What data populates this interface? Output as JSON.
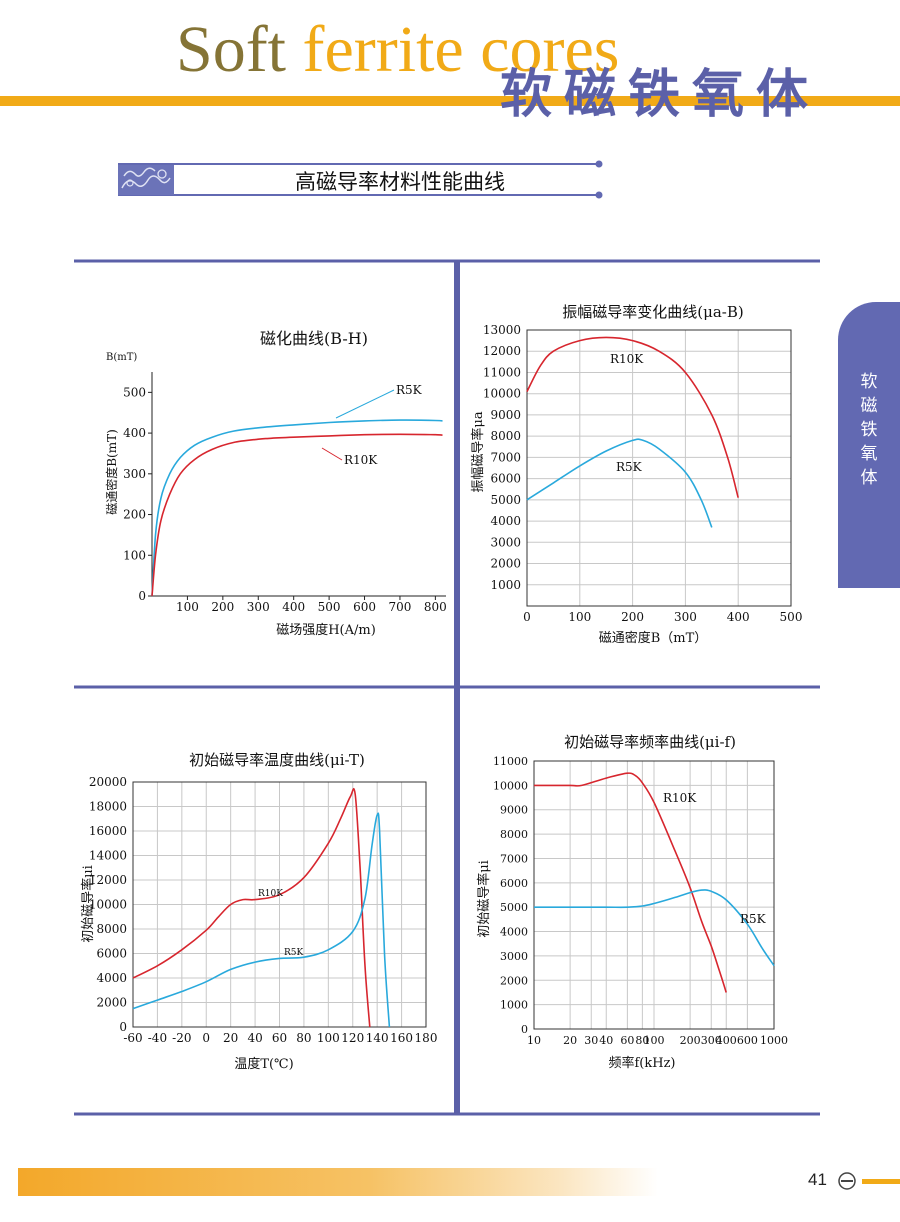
{
  "header": {
    "title_en_part1": "Soft",
    "title_en_part2": "ferrite cores",
    "title_cn": "软磁铁氧体"
  },
  "section": {
    "title": "高磁导率材料性能曲线"
  },
  "side_tab": {
    "chars": [
      "软",
      "磁",
      "铁",
      "氧",
      "体"
    ]
  },
  "footer": {
    "page_number": "41"
  },
  "colors": {
    "accent_orange": "#f1aa17",
    "brand_blue": "#6269b2",
    "r10k_red": "#d7262e",
    "r5k_cyan": "#29a9dc"
  },
  "chart_data": [
    {
      "type": "line",
      "title": "磁化曲线(B-H)",
      "xlabel": "磁场强度H(A/m)",
      "ylabel": "磁通密度B(mT)",
      "yunit": "B(mT)",
      "xlim": [
        0,
        830
      ],
      "ylim": [
        0,
        550
      ],
      "xticks": [
        100,
        200,
        300,
        400,
        500,
        600,
        700,
        800
      ],
      "yticks": [
        0,
        100,
        200,
        300,
        400,
        500
      ],
      "grid": false,
      "series": [
        {
          "name": "R5K",
          "x": [
            0,
            10,
            25,
            50,
            80,
            120,
            170,
            230,
            300,
            400,
            500,
            600,
            700,
            800,
            820
          ],
          "y": [
            0,
            150,
            240,
            300,
            340,
            370,
            390,
            405,
            413,
            420,
            426,
            430,
            432,
            431,
            430
          ]
        },
        {
          "name": "R10K",
          "x": [
            0,
            10,
            25,
            50,
            80,
            120,
            170,
            230,
            300,
            330,
            400,
            500,
            600,
            700,
            800,
            820
          ],
          "y": [
            0,
            100,
            185,
            250,
            300,
            335,
            360,
            377,
            385,
            387,
            390,
            393,
            396,
            397,
            396,
            395
          ]
        }
      ]
    },
    {
      "type": "line",
      "title": "振幅磁导率变化曲线(μa-B)",
      "xlabel": "磁通密度B（mT）",
      "ylabel": "振幅磁导率μa",
      "xlim": [
        0,
        500
      ],
      "ylim": [
        0,
        13000
      ],
      "xticks": [
        0,
        100,
        200,
        300,
        400,
        500
      ],
      "yticks": [
        1000,
        2000,
        3000,
        4000,
        5000,
        6000,
        7000,
        8000,
        9000,
        10000,
        11000,
        12000,
        13000
      ],
      "grid": true,
      "series": [
        {
          "name": "R10K",
          "x": [
            0,
            25,
            50,
            100,
            150,
            200,
            250,
            300,
            350,
            380,
            400
          ],
          "y": [
            10100,
            11300,
            12000,
            12500,
            12650,
            12500,
            12000,
            11000,
            9000,
            7000,
            5100
          ]
        },
        {
          "name": "R5K",
          "x": [
            0,
            50,
            100,
            150,
            200,
            220,
            250,
            300,
            330,
            350
          ],
          "y": [
            5000,
            5800,
            6600,
            7300,
            7800,
            7800,
            7400,
            6300,
            5000,
            3700
          ]
        }
      ]
    },
    {
      "type": "line",
      "title": "初始磁导率温度曲线(μi-T)",
      "xlabel": "温度T(℃)",
      "ylabel": "初始磁导率μi",
      "xlim": [
        -60,
        180
      ],
      "ylim": [
        0,
        20000
      ],
      "xticks": [
        -60,
        -40,
        -20,
        0,
        20,
        40,
        60,
        80,
        100,
        120,
        140,
        160,
        180
      ],
      "yticks": [
        0,
        2000,
        4000,
        6000,
        8000,
        10000,
        12000,
        14000,
        16000,
        18000,
        20000
      ],
      "grid": true,
      "series": [
        {
          "name": "R10K",
          "x": [
            -60,
            -40,
            -20,
            0,
            10,
            20,
            30,
            40,
            60,
            80,
            100,
            110,
            118,
            122,
            126,
            130,
            134
          ],
          "y": [
            4000,
            5000,
            6300,
            7900,
            9000,
            10000,
            10400,
            10400,
            10800,
            12200,
            15000,
            17000,
            18800,
            19000,
            13000,
            5000,
            0
          ]
        },
        {
          "name": "R5K",
          "x": [
            -60,
            -40,
            -20,
            0,
            20,
            40,
            60,
            80,
            100,
            120,
            130,
            136,
            140,
            142,
            146,
            150
          ],
          "y": [
            1500,
            2200,
            2900,
            3700,
            4700,
            5300,
            5600,
            5700,
            6300,
            7800,
            10500,
            15000,
            17300,
            16000,
            6000,
            0
          ]
        }
      ]
    },
    {
      "type": "line",
      "title": "初始磁导率频率曲线(μi-f)",
      "xlabel": "频率f(kHz)",
      "ylabel": "初始磁导率μi",
      "xscale": "log",
      "xlim": [
        10,
        1000
      ],
      "ylim": [
        0,
        11000
      ],
      "xticks": [
        10,
        20,
        30,
        40,
        60,
        80,
        100,
        200,
        300,
        400,
        600,
        1000
      ],
      "yticks": [
        0,
        1000,
        2000,
        3000,
        4000,
        5000,
        6000,
        7000,
        8000,
        9000,
        10000,
        11000
      ],
      "grid": true,
      "series": [
        {
          "name": "R10K",
          "x": [
            10,
            20,
            25,
            40,
            60,
            70,
            80,
            100,
            150,
            200,
            250,
            300,
            350,
            400
          ],
          "y": [
            10000,
            10000,
            10000,
            10300,
            10500,
            10400,
            10100,
            9300,
            7300,
            5800,
            4400,
            3400,
            2400,
            1500
          ]
        },
        {
          "name": "R5K",
          "x": [
            10,
            20,
            40,
            60,
            80,
            100,
            150,
            200,
            250,
            300,
            400,
            600,
            800,
            1000
          ],
          "y": [
            5000,
            5000,
            5000,
            5000,
            5050,
            5150,
            5400,
            5600,
            5700,
            5650,
            5300,
            4300,
            3300,
            2600
          ]
        }
      ]
    }
  ]
}
